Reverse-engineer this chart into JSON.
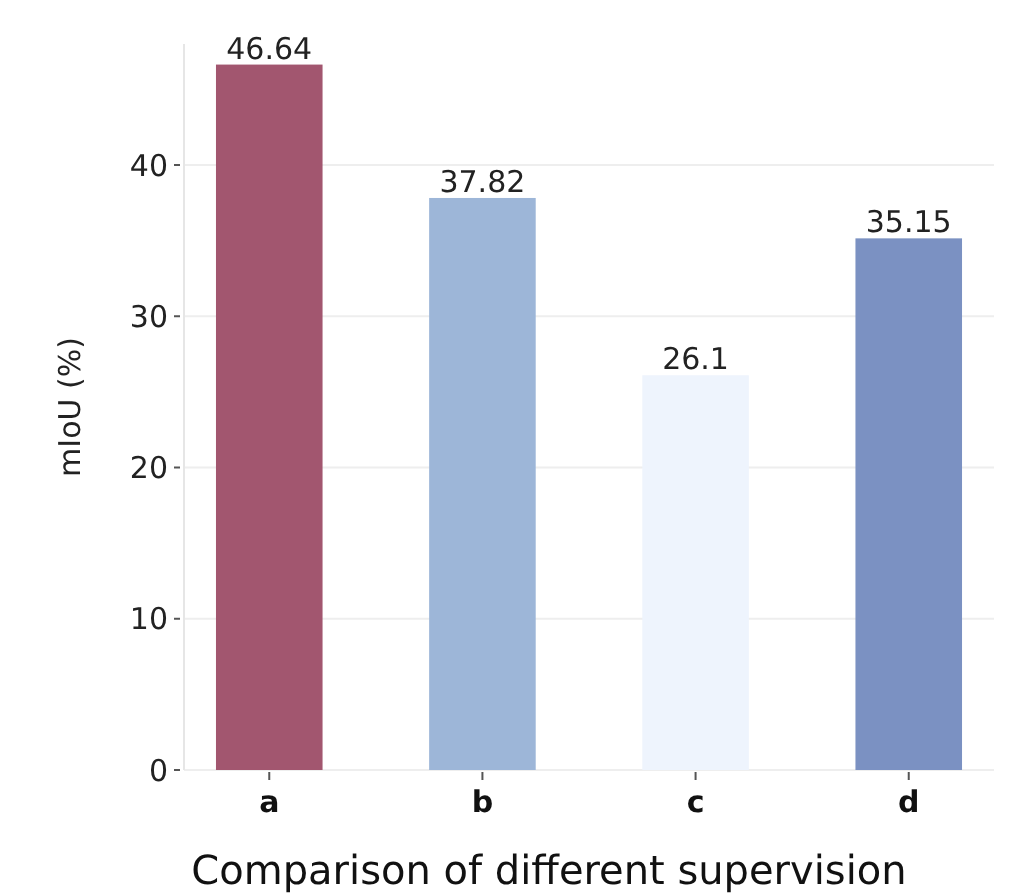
{
  "chart_data": {
    "type": "bar",
    "xlabel": "Comparison of different supervision",
    "ylabel": "mIoU (%)",
    "categories": [
      "a",
      "b",
      "c",
      "d"
    ],
    "values": [
      46.64,
      37.82,
      26.1,
      35.15
    ],
    "colors": [
      "#a2566f",
      "#9db6d8",
      "#eef4fd",
      "#7b91c2"
    ],
    "ylim": [
      0,
      48
    ],
    "yticks": [
      0,
      10,
      20,
      30,
      40
    ],
    "grid": "y",
    "data_labels": true
  }
}
